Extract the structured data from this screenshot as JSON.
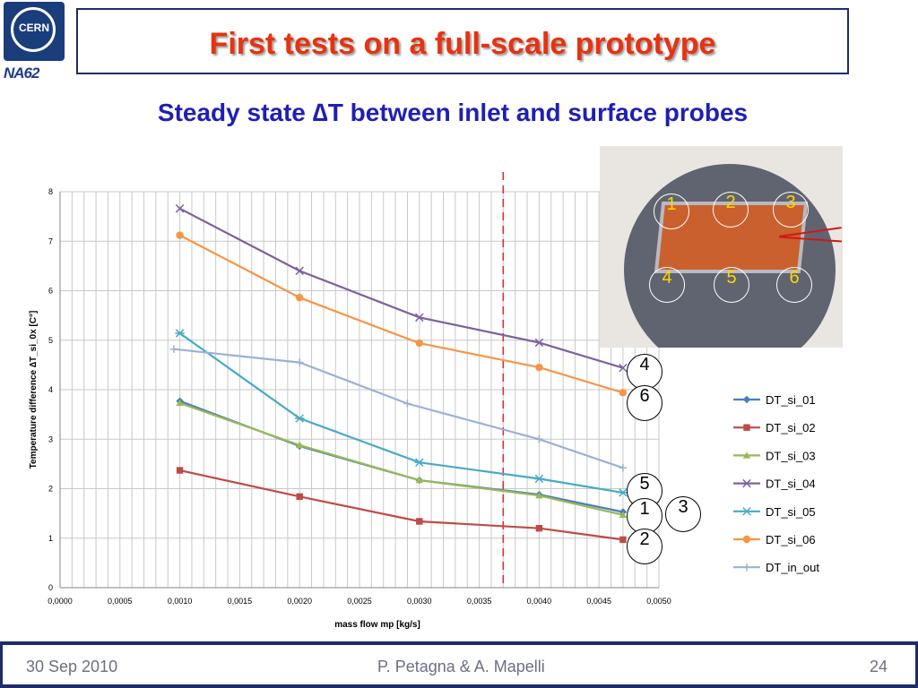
{
  "header": {
    "title": "First tests on a full-scale prototype",
    "subtitle": "Steady state ∆T between inlet and surface probes",
    "cern_logo_text": "CERN",
    "na62_logo_text": "NA62"
  },
  "photo": {
    "probes": [
      "1",
      "2",
      "3",
      "4",
      "5",
      "6"
    ]
  },
  "callouts": [
    "4",
    "6",
    "5",
    "1",
    "3",
    "2"
  ],
  "footer": {
    "date": "30 Sep 2010",
    "authors": "P. Petagna & A. Mapelli",
    "page": "24"
  },
  "chart_data": {
    "type": "line",
    "title": "",
    "xlabel": "mass flow mp [kg/s]",
    "ylabel": "Temperature difference ∆T_si_0x [C°]",
    "xlim": [
      0,
      0.005
    ],
    "ylim": [
      0,
      8
    ],
    "x_ticks": [
      "0,0000",
      "0,0005",
      "0,0010",
      "0,0015",
      "0,0020",
      "0,0025",
      "0,0030",
      "0,0035",
      "0,0040",
      "0,0045",
      "0,0050"
    ],
    "y_ticks": [
      "0",
      "1",
      "2",
      "3",
      "4",
      "5",
      "6",
      "7",
      "8"
    ],
    "grid": true,
    "legend_position": "right",
    "reference_line_x": 0.0037,
    "series": [
      {
        "name": "DT_si_01",
        "color": "#4a7ebb",
        "marker": "diamond",
        "points": [
          [
            0.001,
            3.77
          ],
          [
            0.002,
            2.86
          ],
          [
            0.003,
            2.17
          ],
          [
            0.004,
            1.88
          ],
          [
            0.0047,
            1.53
          ]
        ]
      },
      {
        "name": "DT_si_02",
        "color": "#be4b48",
        "marker": "square",
        "points": [
          [
            0.001,
            2.37
          ],
          [
            0.002,
            1.84
          ],
          [
            0.003,
            1.34
          ],
          [
            0.004,
            1.2
          ],
          [
            0.0047,
            0.97
          ]
        ]
      },
      {
        "name": "DT_si_03",
        "color": "#98b954",
        "marker": "triangle",
        "points": [
          [
            0.001,
            3.73
          ],
          [
            0.002,
            2.88
          ],
          [
            0.003,
            2.17
          ],
          [
            0.004,
            1.86
          ],
          [
            0.0047,
            1.47
          ]
        ]
      },
      {
        "name": "DT_si_04",
        "color": "#7d60a0",
        "marker": "x",
        "points": [
          [
            0.001,
            7.66
          ],
          [
            0.002,
            6.4
          ],
          [
            0.003,
            5.46
          ],
          [
            0.004,
            4.95
          ],
          [
            0.0047,
            4.44
          ]
        ]
      },
      {
        "name": "DT_si_05",
        "color": "#46aac5",
        "marker": "star",
        "points": [
          [
            0.001,
            5.14
          ],
          [
            0.002,
            3.42
          ],
          [
            0.003,
            2.53
          ],
          [
            0.004,
            2.2
          ],
          [
            0.0047,
            1.92
          ]
        ]
      },
      {
        "name": "DT_si_06",
        "color": "#f69546",
        "marker": "circle",
        "points": [
          [
            0.001,
            7.12
          ],
          [
            0.002,
            5.86
          ],
          [
            0.003,
            4.94
          ],
          [
            0.004,
            4.45
          ],
          [
            0.0047,
            3.94
          ]
        ]
      },
      {
        "name": "DT_in_out",
        "color": "#9cb0d6",
        "marker": "plus",
        "points": [
          [
            0.00095,
            4.82
          ],
          [
            0.002,
            4.55
          ],
          [
            0.0029,
            3.72
          ],
          [
            0.004,
            3.0
          ],
          [
            0.0047,
            2.42
          ]
        ]
      }
    ]
  }
}
